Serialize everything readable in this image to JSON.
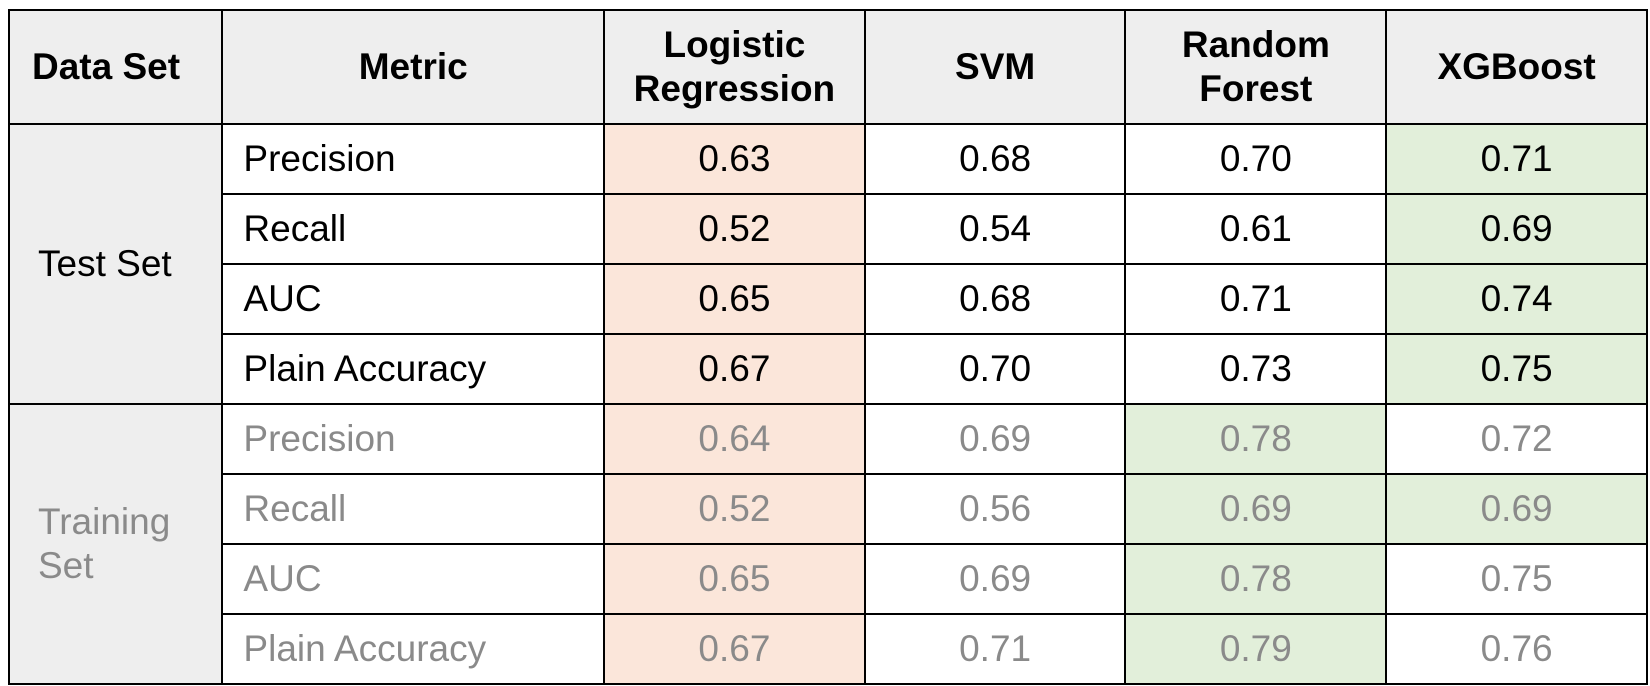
{
  "colors": {
    "header_bg": "#eeeeee",
    "worst_highlight": "#fbe6da",
    "best_highlight": "#e2efda",
    "training_text": "#8a8a8a"
  },
  "headers": {
    "data_set": "Data Set",
    "metric": "Metric",
    "lr_line1": "Logistic",
    "lr_line2": "Regression",
    "svm": "SVM",
    "rf_line1": "Random",
    "rf_line2": "Forest",
    "xgb": "XGBoost"
  },
  "groups": {
    "test": "Test Set",
    "train_line1": "Training",
    "train_line2": "Set"
  },
  "rows": [
    {
      "metric": "Precision",
      "lr": "0.63",
      "svm": "0.68",
      "rf": "0.70",
      "xgb": "0.71"
    },
    {
      "metric": "Recall",
      "lr": "0.52",
      "svm": "0.54",
      "rf": "0.61",
      "xgb": "0.69"
    },
    {
      "metric": "AUC",
      "lr": "0.65",
      "svm": "0.68",
      "rf": "0.71",
      "xgb": "0.74"
    },
    {
      "metric": "Plain Accuracy",
      "lr": "0.67",
      "svm": "0.70",
      "rf": "0.73",
      "xgb": "0.75"
    },
    {
      "metric": "Precision",
      "lr": "0.64",
      "svm": "0.69",
      "rf": "0.78",
      "xgb": "0.72"
    },
    {
      "metric": "Recall",
      "lr": "0.52",
      "svm": "0.56",
      "rf": "0.69",
      "xgb": "0.69"
    },
    {
      "metric": "AUC",
      "lr": "0.65",
      "svm": "0.69",
      "rf": "0.78",
      "xgb": "0.75"
    },
    {
      "metric": "Plain Accuracy",
      "lr": "0.67",
      "svm": "0.71",
      "rf": "0.79",
      "xgb": "0.76"
    }
  ]
}
